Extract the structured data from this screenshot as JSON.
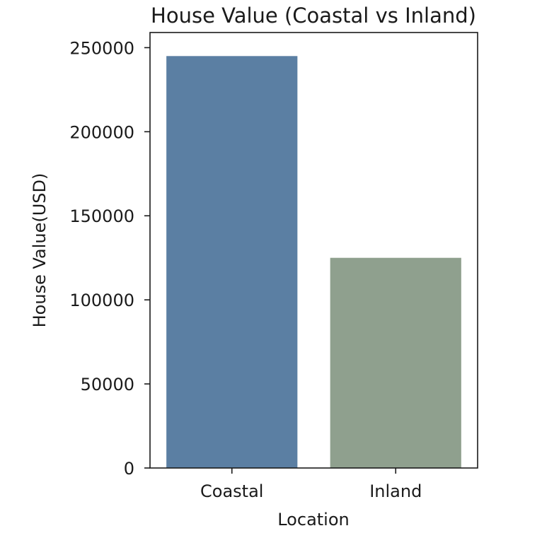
{
  "chart_data": {
    "type": "bar",
    "title": "House Value (Coastal vs Inland)",
    "xlabel": "Location",
    "ylabel": "House Value(USD)",
    "categories": [
      "Coastal",
      "Inland"
    ],
    "values": [
      245000,
      125000
    ],
    "colors": [
      "#5b7fa3",
      "#8fa08e"
    ],
    "ylim": [
      0,
      259000
    ],
    "yticks": [
      0,
      50000,
      100000,
      150000,
      200000,
      250000
    ],
    "ytick_labels": [
      "0",
      "50000",
      "100000",
      "150000",
      "200000",
      "250000"
    ],
    "grid": false,
    "legend": "none"
  }
}
